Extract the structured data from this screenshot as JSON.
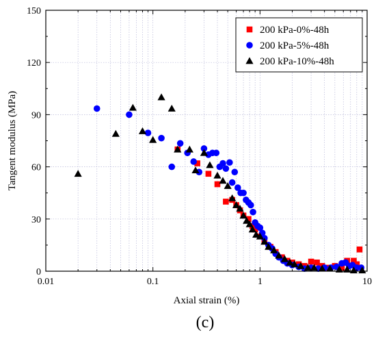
{
  "chart_data": {
    "type": "scatter",
    "panel_label": "(c)",
    "xlabel": "Axial strain (%)",
    "ylabel": "Tangent modulus (MPa)",
    "x_scale": "log",
    "xlim": [
      0.01,
      10
    ],
    "ylim": [
      0,
      150
    ],
    "x_ticks": [
      0.01,
      0.1,
      1,
      10
    ],
    "x_tick_labels": [
      "0.01",
      "0.1",
      "1",
      "10"
    ],
    "y_ticks": [
      0,
      30,
      60,
      90,
      120,
      150
    ],
    "y_tick_labels": [
      "0",
      "30",
      "60",
      "90",
      "120",
      "150"
    ],
    "grid": true,
    "legend_position": "top-right",
    "series": [
      {
        "name": "200 kPa-0%-48h",
        "marker": "square",
        "color": "#ff0000",
        "points": [
          [
            0.17,
            70
          ],
          [
            0.26,
            62
          ],
          [
            0.33,
            56
          ],
          [
            0.4,
            50
          ],
          [
            0.48,
            40
          ],
          [
            0.55,
            41
          ],
          [
            0.6,
            38
          ],
          [
            0.65,
            35
          ],
          [
            0.7,
            32
          ],
          [
            0.78,
            30
          ],
          [
            0.85,
            26
          ],
          [
            0.9,
            24
          ],
          [
            1.0,
            20
          ],
          [
            1.1,
            17
          ],
          [
            1.25,
            14
          ],
          [
            1.4,
            11
          ],
          [
            1.6,
            8
          ],
          [
            1.8,
            6
          ],
          [
            2.0,
            5
          ],
          [
            2.3,
            4
          ],
          [
            2.6,
            3
          ],
          [
            3.0,
            5.5
          ],
          [
            3.4,
            5
          ],
          [
            3.8,
            3
          ],
          [
            4.3,
            2
          ],
          [
            5.0,
            3
          ],
          [
            5.8,
            2
          ],
          [
            6.5,
            6
          ],
          [
            7.5,
            6
          ],
          [
            8.0,
            4
          ],
          [
            8.5,
            12.5
          ]
        ]
      },
      {
        "name": "200 kPa-5%-48h",
        "marker": "circle",
        "color": "#0000ff",
        "points": [
          [
            0.03,
            93.5
          ],
          [
            0.06,
            90
          ],
          [
            0.09,
            79.5
          ],
          [
            0.12,
            76.5
          ],
          [
            0.15,
            60
          ],
          [
            0.18,
            73.5
          ],
          [
            0.21,
            68
          ],
          [
            0.24,
            63
          ],
          [
            0.27,
            57
          ],
          [
            0.3,
            70.5
          ],
          [
            0.33,
            67
          ],
          [
            0.36,
            68
          ],
          [
            0.39,
            68
          ],
          [
            0.42,
            60
          ],
          [
            0.45,
            62
          ],
          [
            0.48,
            59
          ],
          [
            0.52,
            62.5
          ],
          [
            0.55,
            51
          ],
          [
            0.58,
            57
          ],
          [
            0.62,
            48
          ],
          [
            0.66,
            45
          ],
          [
            0.7,
            45
          ],
          [
            0.74,
            41
          ],
          [
            0.78,
            39.5
          ],
          [
            0.82,
            38
          ],
          [
            0.86,
            34
          ],
          [
            0.9,
            28
          ],
          [
            0.95,
            26
          ],
          [
            1.0,
            25
          ],
          [
            1.05,
            22
          ],
          [
            1.1,
            19
          ],
          [
            1.2,
            15
          ],
          [
            1.3,
            13
          ],
          [
            1.4,
            10
          ],
          [
            1.5,
            8
          ],
          [
            1.65,
            6
          ],
          [
            1.8,
            4.5
          ],
          [
            2.0,
            3.5
          ],
          [
            2.3,
            2.5
          ],
          [
            2.6,
            1.5
          ],
          [
            3.0,
            2
          ],
          [
            3.5,
            1.5
          ],
          [
            4.0,
            2
          ],
          [
            4.6,
            2
          ],
          [
            5.2,
            2.5
          ],
          [
            5.8,
            4.5
          ],
          [
            6.3,
            5
          ],
          [
            6.8,
            3
          ],
          [
            7.3,
            3.5
          ],
          [
            8.0,
            2
          ],
          [
            8.8,
            2
          ]
        ]
      },
      {
        "name": "200 kPa-10%-48h",
        "marker": "triangle",
        "color": "#000000",
        "points": [
          [
            0.02,
            56
          ],
          [
            0.045,
            79
          ],
          [
            0.065,
            94
          ],
          [
            0.08,
            80.5
          ],
          [
            0.1,
            75.5
          ],
          [
            0.12,
            100
          ],
          [
            0.15,
            93.5
          ],
          [
            0.17,
            70
          ],
          [
            0.22,
            70
          ],
          [
            0.25,
            58
          ],
          [
            0.3,
            68
          ],
          [
            0.34,
            61
          ],
          [
            0.4,
            55
          ],
          [
            0.45,
            52
          ],
          [
            0.5,
            49
          ],
          [
            0.55,
            42
          ],
          [
            0.6,
            38
          ],
          [
            0.65,
            36
          ],
          [
            0.7,
            32
          ],
          [
            0.75,
            29
          ],
          [
            0.8,
            27
          ],
          [
            0.85,
            24
          ],
          [
            0.92,
            21
          ],
          [
            1.0,
            20
          ],
          [
            1.1,
            17
          ],
          [
            1.2,
            14
          ],
          [
            1.35,
            12
          ],
          [
            1.5,
            9
          ],
          [
            1.7,
            7
          ],
          [
            1.9,
            5
          ],
          [
            2.1,
            4
          ],
          [
            2.4,
            3
          ],
          [
            2.8,
            2
          ],
          [
            3.2,
            2
          ],
          [
            3.8,
            1.5
          ],
          [
            4.5,
            1.5
          ],
          [
            5.5,
            1
          ],
          [
            6.5,
            1
          ],
          [
            7.5,
            0.5
          ],
          [
            9.0,
            0.5
          ]
        ]
      }
    ]
  }
}
